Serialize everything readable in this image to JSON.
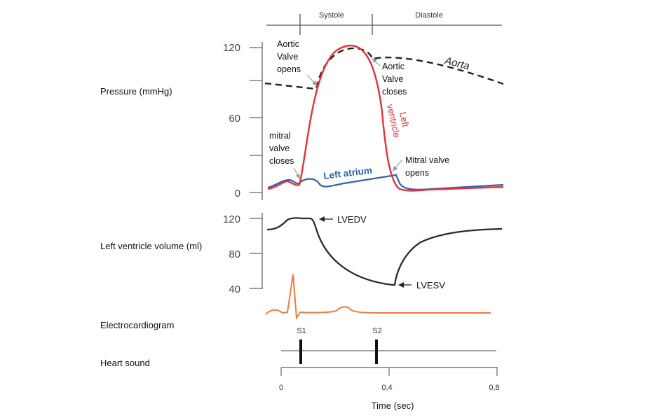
{
  "phases": {
    "systole": "Systole",
    "diastole": "Diastole"
  },
  "row_labels": {
    "pressure": "Pressure (mmHg)",
    "volume": "Left ventricle volume (ml)",
    "ecg": "Electrocardiogram",
    "sound": "Heart sound"
  },
  "pressure_axis": {
    "ticks": [
      "120",
      "60",
      "0"
    ]
  },
  "volume_axis": {
    "ticks": [
      "120",
      "80",
      "40"
    ]
  },
  "curves": {
    "aorta": "Aorta",
    "left_ventricle": [
      "Left",
      "ventricle"
    ],
    "left_atrium": "Left atrium"
  },
  "annotations": {
    "aortic_open": [
      "Aortic",
      "Valve",
      "opens"
    ],
    "aortic_close": [
      "Aortic",
      "Valve",
      "closes"
    ],
    "mitral_close": [
      "mitral",
      "valve",
      "closes"
    ],
    "mitral_open": [
      "Mitral valve",
      "opens"
    ],
    "lvedv": "LVEDV",
    "lvesv": "LVESV"
  },
  "heart_sounds": {
    "s1": "S1",
    "s2": "S2"
  },
  "time_axis": {
    "label": "Time (sec)",
    "ticks": [
      "0",
      "0,4",
      "0,8"
    ]
  },
  "colors": {
    "left_ventricle": "#e8303a",
    "left_atrium": "#2f5fb3",
    "aorta": "#222222",
    "volume": "#2b2b2b",
    "ecg": "#f07b3f",
    "axis": "#666666"
  }
}
